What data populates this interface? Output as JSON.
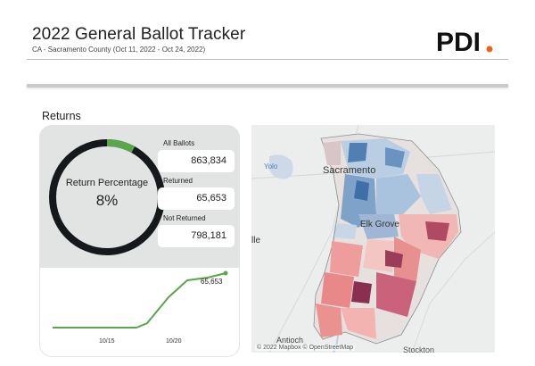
{
  "header": {
    "title": "2022 General Ballot Tracker",
    "subtitle": "CA - Sacramento County (Oct 11, 2022 - Oct 24, 2022)",
    "logo_text": "PDI",
    "logo_dot_color": "#e8641e"
  },
  "returns": {
    "section_label": "Returns",
    "ring_label": "Return Percentage",
    "ring_value": "8%",
    "return_fraction": 0.08,
    "ring_color": "#16191c",
    "accent_color": "#5aa64c",
    "stats": [
      {
        "label": "All Ballots",
        "value": "863,834"
      },
      {
        "label": "Returned",
        "value": "65,653"
      },
      {
        "label": "Not Returned",
        "value": "798,181"
      }
    ]
  },
  "trend": {
    "end_label": "65,653",
    "x_ticks": [
      "10/15",
      "10/20"
    ],
    "line_color": "#5aa64c"
  },
  "map": {
    "place_labels": [
      "Yolo",
      "Sacramento",
      "Elk Grove",
      "lle",
      "Antioch",
      "Stockton"
    ],
    "attribution": "© 2022 Mapbox © OpenStreetMap"
  }
}
